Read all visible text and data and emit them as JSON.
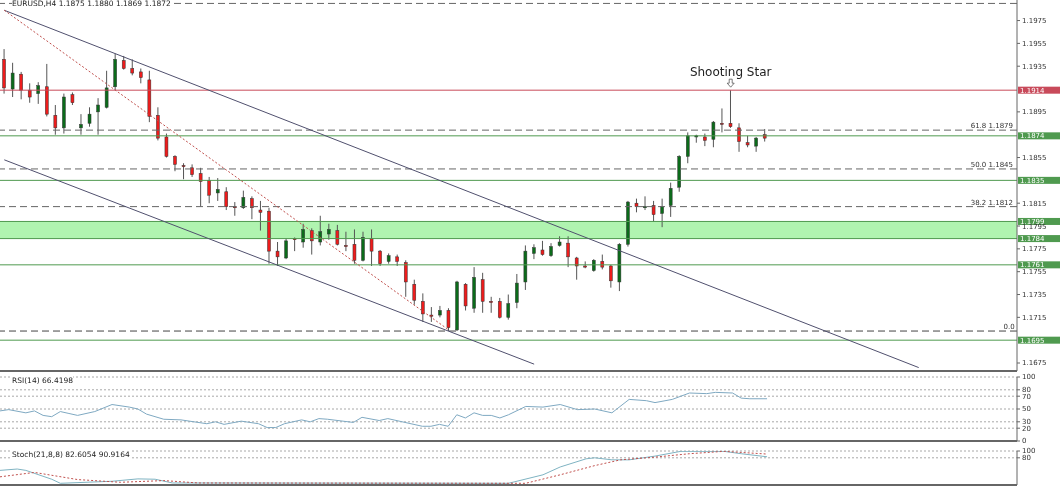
{
  "chart_data": [
    {
      "type": "candlestick",
      "title": "EURUSD,H4 1.1875 1.1880 1.1869 1.1872",
      "categories": [
        null,
        null,
        null,
        null,
        null,
        null,
        null,
        null,
        null,
        null,
        null,
        null,
        null,
        null,
        null,
        null,
        null,
        null,
        null,
        null,
        null,
        null,
        null,
        null,
        null,
        null,
        null,
        null,
        null,
        null,
        null,
        null,
        null,
        null,
        null,
        null,
        null,
        null,
        null,
        null,
        null,
        null,
        null,
        null,
        null,
        null,
        null,
        null,
        null,
        null,
        null,
        null,
        null,
        null,
        null,
        null,
        null,
        null,
        null,
        null,
        null,
        null,
        null,
        null,
        null,
        null,
        null,
        null,
        null,
        null,
        null,
        null,
        null,
        null,
        null,
        null,
        null,
        null,
        null,
        null,
        null,
        null,
        null,
        null,
        null,
        null,
        null,
        null,
        null,
        null,
        null,
        null,
        null,
        null,
        null,
        null,
        null,
        null,
        null,
        null,
        null,
        null,
        null,
        null,
        null,
        null,
        null,
        null,
        null,
        null,
        null,
        null,
        null,
        null,
        null,
        null,
        null,
        null,
        null
      ],
      "ohlc": [
        [
          1.1941,
          1.195,
          1.1911,
          1.1916
        ],
        [
          1.1915,
          1.1938,
          1.1908,
          1.1929
        ],
        [
          1.1928,
          1.193,
          1.1906,
          1.1914
        ],
        [
          1.1914,
          1.192,
          1.1903,
          1.1908
        ],
        [
          1.1911,
          1.1921,
          1.1902,
          1.1918
        ],
        [
          1.1917,
          1.1937,
          1.1891,
          1.1893
        ],
        [
          1.1892,
          1.1901,
          1.1875,
          1.1881
        ],
        [
          1.1881,
          1.1911,
          1.1876,
          1.1908
        ],
        [
          1.191,
          1.1912,
          1.1901,
          1.1903
        ],
        [
          1.1881,
          1.1893,
          1.1875,
          1.1884
        ],
        [
          1.1885,
          1.1899,
          1.1882,
          1.1893
        ],
        [
          1.1895,
          1.1907,
          1.1875,
          1.1901
        ],
        [
          1.1899,
          1.1931,
          1.1898,
          1.1916
        ],
        [
          1.1917,
          1.1946,
          1.1914,
          1.1941
        ],
        [
          1.194,
          1.1944,
          1.1932,
          1.1933
        ],
        [
          1.1933,
          1.1941,
          1.1927,
          1.1929
        ],
        [
          1.193,
          1.1933,
          1.192,
          1.1925
        ],
        [
          1.1923,
          1.1931,
          1.1886,
          1.1891
        ],
        [
          1.1892,
          1.1899,
          1.187,
          1.1872
        ],
        [
          1.1873,
          1.1876,
          1.1855,
          1.1856
        ],
        [
          1.1856,
          1.1857,
          1.1843,
          1.1849
        ],
        [
          1.1848,
          1.185,
          1.1836,
          1.1847
        ],
        [
          1.1846,
          1.1849,
          1.1838,
          1.184
        ],
        [
          1.1841,
          1.1846,
          1.1812,
          1.1834
        ],
        [
          1.1835,
          1.1838,
          1.1815,
          1.1822
        ],
        [
          1.1824,
          1.1837,
          1.1817,
          1.1827
        ],
        [
          1.1825,
          1.1829,
          1.1809,
          1.1812
        ],
        [
          1.1812,
          1.1816,
          1.1804,
          1.1811
        ],
        [
          1.1811,
          1.1826,
          1.181,
          1.182
        ],
        [
          1.1819,
          1.1821,
          1.1801,
          1.1811
        ],
        [
          1.1809,
          1.1817,
          1.1791,
          1.1807
        ],
        [
          1.1808,
          1.1811,
          1.1762,
          1.1773
        ],
        [
          1.1773,
          1.1781,
          1.176,
          1.1768
        ],
        [
          1.1767,
          1.1784,
          1.1766,
          1.1782
        ],
        [
          1.1784,
          1.1785,
          1.1773,
          1.1783
        ],
        [
          1.1781,
          1.1797,
          1.1776,
          1.1792
        ],
        [
          1.1791,
          1.1793,
          1.177,
          1.1782
        ],
        [
          1.1781,
          1.1804,
          1.1778,
          1.179
        ],
        [
          1.1788,
          1.1797,
          1.1783,
          1.1792
        ],
        [
          1.1791,
          1.1796,
          1.1778,
          1.1779
        ],
        [
          1.1778,
          1.179,
          1.1773,
          1.1777
        ],
        [
          1.1779,
          1.1792,
          1.1762,
          1.1765
        ],
        [
          1.1765,
          1.179,
          1.1764,
          1.1785
        ],
        [
          1.1784,
          1.1792,
          1.176,
          1.1773
        ],
        [
          1.1773,
          1.1774,
          1.176,
          1.1762
        ],
        [
          1.1764,
          1.1771,
          1.1762,
          1.1769
        ],
        [
          1.1768,
          1.177,
          1.176,
          1.1764
        ],
        [
          1.1763,
          1.1765,
          1.1733,
          1.1746
        ],
        [
          1.1744,
          1.1748,
          1.1726,
          1.173
        ],
        [
          1.1729,
          1.1736,
          1.1711,
          1.1718
        ],
        [
          1.1717,
          1.1724,
          1.1711,
          1.1716
        ],
        [
          1.1717,
          1.1725,
          1.1715,
          1.1721
        ],
        [
          1.1721,
          1.1723,
          1.1703,
          1.1706
        ],
        [
          1.1704,
          1.1747,
          1.1703,
          1.1746
        ],
        [
          1.1744,
          1.1745,
          1.1721,
          1.1725
        ],
        [
          1.1723,
          1.1759,
          1.1719,
          1.175
        ],
        [
          1.1748,
          1.1754,
          1.1719,
          1.1729
        ],
        [
          1.1729,
          1.1733,
          1.1719,
          1.1728
        ],
        [
          1.1729,
          1.1732,
          1.1714,
          1.1715
        ],
        [
          1.1715,
          1.1735,
          1.1713,
          1.1727
        ],
        [
          1.1728,
          1.1753,
          1.1723,
          1.1745
        ],
        [
          1.1746,
          1.1778,
          1.1739,
          1.1773
        ],
        [
          1.1771,
          1.1779,
          1.1766,
          1.1776
        ],
        [
          1.1774,
          1.1782,
          1.1769,
          1.177
        ],
        [
          1.1769,
          1.178,
          1.1768,
          1.1777
        ],
        [
          1.1778,
          1.1786,
          1.1777,
          1.1781
        ],
        [
          1.178,
          1.1786,
          1.1759,
          1.1768
        ],
        [
          1.1767,
          1.1768,
          1.1748,
          1.176
        ],
        [
          1.176,
          1.1764,
          1.1758,
          1.1759
        ],
        [
          1.1756,
          1.1766,
          1.1755,
          1.1765
        ],
        [
          1.1764,
          1.177,
          1.1757,
          1.1759
        ],
        [
          1.176,
          1.1761,
          1.1741,
          1.1747
        ],
        [
          1.1746,
          1.178,
          1.1738,
          1.1779
        ],
        [
          1.1779,
          1.1817,
          1.1777,
          1.1816
        ],
        [
          1.1815,
          1.1819,
          1.1807,
          1.1812
        ],
        [
          1.1811,
          1.1821,
          1.1809,
          1.1812
        ],
        [
          1.1813,
          1.1817,
          1.1799,
          1.1805
        ],
        [
          1.1806,
          1.1819,
          1.1794,
          1.1812
        ],
        [
          1.1813,
          1.1833,
          1.1803,
          1.1828
        ],
        [
          1.1829,
          1.1857,
          1.1825,
          1.1856
        ],
        [
          1.1856,
          1.1877,
          1.185,
          1.1874
        ],
        [
          1.1873,
          1.1875,
          1.1868,
          1.1874
        ],
        [
          1.1873,
          1.1876,
          1.1865,
          1.187
        ],
        [
          1.1871,
          1.1887,
          1.1864,
          1.1886
        ],
        [
          1.1885,
          1.1898,
          1.1877,
          1.1884
        ],
        [
          1.1885,
          1.1914,
          1.1881,
          1.1882
        ],
        [
          1.1881,
          1.1885,
          1.186,
          1.1869
        ],
        [
          1.1868,
          1.1874,
          1.1864,
          1.1866
        ],
        [
          1.1865,
          1.1873,
          1.186,
          1.1872
        ],
        [
          1.1875,
          1.188,
          1.1869,
          1.1872
        ],
        null,
        null,
        null,
        null,
        null,
        null,
        null,
        null,
        null,
        null,
        null,
        null,
        null,
        null,
        null,
        null,
        null,
        null,
        null,
        null,
        null,
        null,
        null,
        null,
        null,
        null,
        null,
        null,
        null
      ],
      "series": [
        {
          "type": "line",
          "color": "#50506e",
          "line_style": "solid",
          "values": [
            1.1984,
            null,
            null,
            null,
            null,
            null,
            null,
            null,
            null,
            null,
            null,
            null,
            null,
            null,
            null,
            null,
            null,
            null,
            null,
            null,
            null,
            null,
            null,
            null,
            null,
            null,
            null,
            null,
            null,
            null,
            null,
            null,
            null,
            null,
            null,
            null,
            null,
            null,
            null,
            null,
            null,
            null,
            null,
            null,
            null,
            null,
            null,
            null,
            null,
            null,
            null,
            null,
            null,
            null,
            null,
            null,
            null,
            null,
            null,
            null,
            null,
            null,
            null,
            null,
            null,
            null,
            null,
            null,
            null,
            null,
            null,
            null,
            null,
            null,
            null,
            null,
            null,
            null,
            null,
            null,
            null,
            null,
            null,
            null,
            null,
            null,
            null,
            null,
            null,
            null,
            null,
            null,
            null,
            null,
            null,
            null,
            null,
            null,
            null,
            null,
            null,
            null,
            null,
            null,
            null,
            null,
            null,
            1.1671,
            null,
            null,
            null,
            null,
            null,
            null,
            null,
            null,
            null,
            null,
            null
          ]
        },
        {
          "type": "line",
          "color": "#50506e",
          "line_style": "solid",
          "values": [
            1.1853,
            null,
            null,
            null,
            null,
            null,
            null,
            null,
            null,
            null,
            null,
            null,
            null,
            null,
            null,
            null,
            null,
            null,
            null,
            null,
            null,
            null,
            null,
            null,
            null,
            null,
            null,
            null,
            null,
            null,
            null,
            null,
            null,
            null,
            null,
            null,
            null,
            null,
            null,
            null,
            null,
            null,
            null,
            null,
            null,
            null,
            null,
            null,
            null,
            null,
            null,
            null,
            null,
            null,
            null,
            null,
            null,
            null,
            null,
            null,
            null,
            null,
            1.1674,
            null,
            null,
            null,
            null,
            null,
            null,
            null,
            null,
            null,
            null,
            null,
            null,
            null,
            null,
            null,
            null,
            null,
            null,
            null,
            null,
            null,
            null,
            null,
            null,
            null,
            null,
            null,
            null,
            null,
            null,
            null,
            null,
            null,
            null,
            null,
            null,
            null,
            null,
            null,
            null,
            null,
            null,
            null,
            null,
            null,
            null,
            null,
            null,
            null,
            null,
            null,
            null,
            null,
            null,
            null,
            null
          ]
        },
        {
          "type": "line",
          "color": "#c0504d",
          "line_style": "dotted",
          "values": [
            1.1984,
            null,
            null,
            null,
            null,
            null,
            null,
            null,
            null,
            null,
            null,
            null,
            null,
            null,
            null,
            null,
            null,
            null,
            null,
            null,
            null,
            null,
            null,
            null,
            null,
            null,
            null,
            null,
            null,
            null,
            null,
            null,
            null,
            null,
            null,
            null,
            null,
            null,
            null,
            null,
            null,
            null,
            null,
            null,
            null,
            null,
            null,
            null,
            null,
            null,
            null,
            null,
            1.1704,
            null,
            null,
            null,
            null,
            null,
            null,
            null,
            null,
            null,
            null,
            null,
            null,
            null,
            null,
            null,
            null,
            null,
            null,
            null,
            null,
            null,
            null,
            null,
            null,
            null,
            null,
            null,
            null,
            null,
            null,
            null,
            null,
            null,
            null,
            null,
            null,
            null,
            null,
            null,
            null,
            null,
            null,
            null,
            null,
            null,
            null,
            null,
            null,
            null,
            null,
            null,
            null,
            null,
            null,
            null,
            null,
            null,
            null,
            null,
            null,
            null,
            null,
            null,
            null,
            null,
            null
          ]
        }
      ],
      "ylim": [
        1.1668,
        1.1993
      ],
      "yticks": [
        1.1675,
        1.1715,
        1.1735,
        1.1755,
        1.1775,
        1.1795,
        1.1815,
        1.1855,
        1.1895,
        1.1935,
        1.1955,
        1.1975
      ],
      "ref_lines": [
        {
          "axis": "y",
          "value": 1.199,
          "label": null,
          "color": "#666666",
          "line_style": "dashed"
        },
        {
          "axis": "y",
          "value": 1.1914,
          "label": "1.1914",
          "color": "#c84a5a",
          "line_style": "solid"
        },
        {
          "axis": "y",
          "value": 1.1879,
          "label": "61.8 1.1879",
          "color": "#666666",
          "line_style": "dashed"
        },
        {
          "axis": "y",
          "value": 1.1874,
          "label": "1.1874",
          "color": "#4f9a4f",
          "line_style": "solid"
        },
        {
          "axis": "y",
          "value": 1.1845,
          "label": "50.0 1.1845",
          "color": "#666666",
          "line_style": "dashed"
        },
        {
          "axis": "y",
          "value": 1.1835,
          "label": "1.1835",
          "color": "#4f9a4f",
          "line_style": "solid"
        },
        {
          "axis": "y",
          "value": 1.1812,
          "label": "38.2 1.1812",
          "color": "#666666",
          "line_style": "dashed"
        },
        {
          "axis": "y",
          "value": 1.1799,
          "label": "1.1799",
          "color": "#4f9a4f",
          "line_style": "solid"
        },
        {
          "axis": "y",
          "value": 1.1784,
          "label": "1.1784",
          "color": "#4f9a4f",
          "line_style": "solid"
        },
        {
          "axis": "y",
          "value": 1.1761,
          "label": "1.1761",
          "color": "#4f9a4f",
          "line_style": "solid"
        },
        {
          "axis": "y",
          "value": 1.1703,
          "label": null,
          "color": "#444444",
          "line_style": "dashed"
        },
        {
          "axis": "y",
          "value": 1.1695,
          "label": "1.1695",
          "color": "#4f9a4f",
          "line_style": "solid"
        }
      ],
      "bands": [
        {
          "axis": "y",
          "from": 1.1784,
          "to": 1.1799,
          "color": "#8ef08e"
        }
      ],
      "annotations": [
        {
          "text": "Shooting Star",
          "y": 1.1914
        },
        {
          "text": "0.0",
          "y": 1.1703
        }
      ],
      "tick_labels": "y"
    },
    {
      "type": "line",
      "title": "RSI(14) 66.4198",
      "categories": [
        null,
        null,
        null,
        null,
        null,
        null,
        null,
        null,
        null,
        null,
        null,
        null,
        null,
        null,
        null,
        null,
        null,
        null,
        null,
        null,
        null,
        null,
        null,
        null,
        null,
        null,
        null,
        null,
        null,
        null,
        null,
        null,
        null,
        null,
        null,
        null,
        null,
        null,
        null,
        null,
        null,
        null,
        null,
        null,
        null,
        null,
        null,
        null,
        null,
        null,
        null,
        null,
        null,
        null,
        null,
        null,
        null,
        null,
        null,
        null,
        null,
        null,
        null,
        null,
        null,
        null,
        null,
        null,
        null,
        null,
        null,
        null,
        null,
        null,
        null,
        null,
        null,
        null,
        null,
        null,
        null,
        null,
        null,
        null,
        null,
        null,
        null,
        null,
        null,
        null,
        null,
        null,
        null,
        null,
        null,
        null,
        null,
        null,
        null,
        null,
        null,
        null,
        null,
        null,
        null,
        null,
        null,
        null,
        null,
        null,
        null,
        null,
        null,
        null,
        null,
        null,
        null,
        null,
        null
      ],
      "series": [
        {
          "color": "#7fa9c2",
          "values": [
            47,
            49,
            null,
            44,
            47,
            40,
            38,
            46,
            43,
            40,
            null,
            46,
            null,
            57,
            null,
            53,
            50,
            42,
            null,
            34,
            null,
            33,
            null,
            null,
            27,
            30,
            26,
            null,
            31,
            null,
            27,
            21,
            21,
            27,
            null,
            33,
            30,
            35,
            34,
            null,
            null,
            29,
            37,
            null,
            32,
            35,
            null,
            null,
            null,
            23,
            23,
            26,
            23,
            41,
            36,
            44,
            40,
            40,
            36,
            41,
            null,
            54,
            null,
            53,
            null,
            57,
            null,
            49,
            null,
            50,
            null,
            44,
            null,
            65,
            null,
            63,
            60,
            null,
            65,
            null,
            75,
            null,
            74,
            76,
            null,
            75,
            67,
            66,
            null,
            66,
            null,
            null,
            null,
            null,
            null,
            null,
            null,
            null,
            null,
            null,
            null,
            null,
            null,
            null,
            null,
            null,
            null,
            null,
            null,
            null,
            null,
            null,
            null,
            null,
            null,
            null,
            null,
            null,
            null
          ]
        }
      ],
      "ylim": [
        0,
        100
      ],
      "yticks": [
        0,
        20,
        30,
        50,
        70,
        80,
        100
      ],
      "grid": "y",
      "marker": "none",
      "tick_labels": "y"
    },
    {
      "type": "line",
      "title": "Stoch(21,8,8) 82.6054 90.9164",
      "categories": [
        null,
        null,
        null,
        null,
        null,
        null,
        null,
        null,
        null,
        null,
        null,
        null,
        null,
        null,
        null,
        null,
        null,
        null,
        null,
        null,
        null,
        null,
        null,
        null,
        null,
        null,
        null,
        null,
        null,
        null,
        null,
        null,
        null,
        null,
        null,
        null,
        null,
        null,
        null,
        null,
        null,
        null,
        null,
        null,
        null,
        null,
        null,
        null,
        null,
        null,
        null,
        null,
        null,
        null,
        null,
        null,
        null,
        null,
        null,
        null,
        null,
        null,
        null,
        null,
        null,
        null,
        null,
        null,
        null,
        null,
        null,
        null,
        null,
        null,
        null,
        null,
        null,
        null,
        null,
        null,
        null,
        null,
        null,
        null,
        null,
        null,
        null,
        null,
        null,
        null,
        null,
        null,
        null,
        null,
        null,
        null,
        null,
        null,
        null,
        null,
        null,
        null,
        null,
        null,
        null,
        null,
        null,
        null,
        null,
        null,
        null,
        null,
        null,
        null,
        null,
        null,
        null,
        null,
        null
      ],
      "series": [
        {
          "color": "#7fb3c2",
          "line_style": "solid",
          "values": [
            43,
            null,
            47,
            43,
            null,
            null,
            17,
            5,
            null,
            null,
            null,
            null,
            null,
            11,
            null,
            null,
            18,
            null,
            17,
            null,
            6,
            null,
            null,
            null,
            null,
            null,
            null,
            null,
            null,
            null,
            null,
            null,
            null,
            null,
            null,
            null,
            null,
            null,
            null,
            null,
            null,
            null,
            null,
            null,
            null,
            null,
            null,
            null,
            null,
            null,
            null,
            null,
            null,
            null,
            null,
            null,
            null,
            null,
            null,
            5,
            null,
            null,
            null,
            30,
            null,
            53,
            null,
            null,
            77,
            80,
            null,
            74,
            null,
            74,
            null,
            null,
            85,
            null,
            null,
            99,
            null,
            null,
            null,
            null,
            99,
            null,
            92,
            null,
            null,
            83,
            null,
            null,
            null,
            null,
            null,
            null,
            null,
            null,
            null,
            null,
            null,
            null,
            null,
            null,
            null,
            null,
            null,
            null,
            null,
            null,
            null,
            null,
            null,
            null,
            null,
            null,
            null,
            null,
            null
          ]
        },
        {
          "color": "#c0504d",
          "line_style": "dotted",
          "values": [
            24,
            null,
            null,
            null,
            37,
            null,
            null,
            null,
            null,
            16,
            null,
            null,
            null,
            null,
            8,
            null,
            null,
            null,
            null,
            13,
            null,
            null,
            null,
            6,
            null,
            null,
            null,
            null,
            null,
            null,
            null,
            null,
            null,
            null,
            null,
            null,
            null,
            null,
            null,
            null,
            null,
            null,
            null,
            null,
            null,
            null,
            null,
            null,
            null,
            null,
            null,
            null,
            null,
            null,
            null,
            null,
            null,
            null,
            null,
            null,
            null,
            5,
            null,
            null,
            null,
            30,
            null,
            null,
            null,
            57,
            null,
            null,
            74,
            null,
            null,
            null,
            82,
            null,
            null,
            null,
            92,
            null,
            null,
            null,
            99,
            null,
            null,
            null,
            null,
            91,
            null,
            null,
            null,
            null,
            null,
            null,
            null,
            null,
            null,
            null,
            null,
            null,
            null,
            null,
            null,
            null,
            null,
            null,
            null,
            null,
            null,
            null,
            null,
            null,
            null,
            null,
            null,
            null,
            null
          ]
        }
      ],
      "ylim": [
        0,
        100
      ],
      "yticks": [
        80,
        100
      ],
      "grid": "y",
      "marker": "none",
      "tick_labels": "y"
    }
  ]
}
